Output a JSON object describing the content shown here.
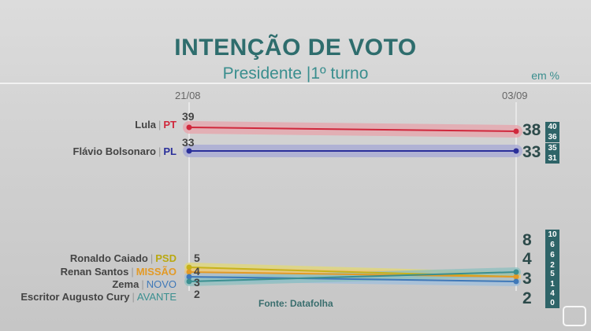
{
  "title": "INTENÇÃO DE VOTO",
  "subtitle_a": "Presidente",
  "subtitle_b": "1º turno",
  "unit": "em %",
  "source": "Fonte: Datafolha",
  "chart_data": {
    "type": "line",
    "x": [
      "21/08",
      "03/09"
    ],
    "series": [
      {
        "name": "Lula",
        "party": "PT",
        "values": [
          39,
          38
        ],
        "ci_high": 40,
        "ci_low": 36,
        "color": "#d0283c",
        "band": "#e8a4ab"
      },
      {
        "name": "Flávio Bolsonaro",
        "party": "PL",
        "values": [
          33,
          33
        ],
        "ci_high": 35,
        "ci_low": 31,
        "color": "#2a2f9a",
        "band": "#a6a8d6"
      },
      {
        "name": "Ronaldo Caiado",
        "party": "PSD",
        "values": [
          5,
          3
        ],
        "ci_high": 5,
        "ci_low": 1,
        "color": "#c7b21a",
        "band": "#e3d975"
      },
      {
        "name": "Renan Santos",
        "party": "MISSÃO",
        "values": [
          4,
          3
        ],
        "ci_high": 5,
        "ci_low": 1,
        "color": "#e39a26",
        "band": "#ecc680"
      },
      {
        "name": "Zema",
        "party": "NOVO",
        "values": [
          3,
          2
        ],
        "ci_high": 4,
        "ci_low": 0,
        "color": "#3f78b8",
        "band": "#9fbfdd"
      },
      {
        "name": "Escritor Augusto Cury",
        "party": "AVANTE",
        "values": [
          2,
          4
        ],
        "ci_high": 6,
        "ci_low": 2,
        "color": "#3a8f90",
        "band": "#8ec0c0"
      }
    ],
    "end_labels": [
      "8",
      "4",
      "3",
      "2"
    ],
    "ci_boxes_low_group": [
      "10",
      "6",
      "6",
      "2",
      "5",
      "1",
      "4",
      "0"
    ]
  }
}
